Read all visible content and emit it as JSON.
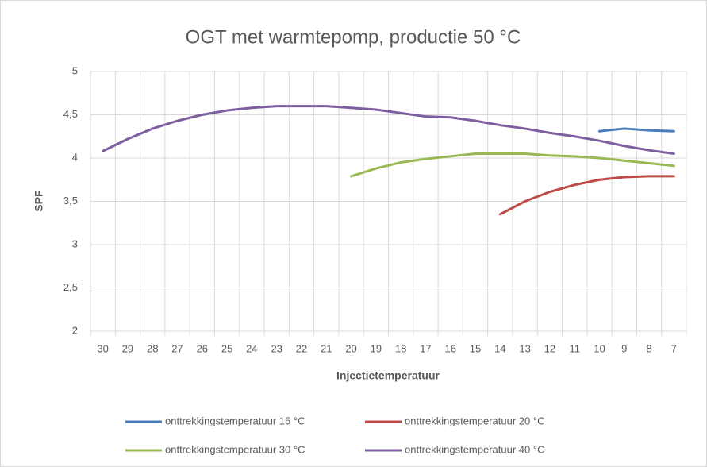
{
  "chart_data": {
    "type": "line",
    "title": "OGT met warmtepomp, productie 50 °C",
    "x_label": "Injectietemperatuur",
    "y_label": "SPF",
    "categories": [
      "30",
      "29",
      "28",
      "27",
      "26",
      "25",
      "24",
      "23",
      "22",
      "21",
      "20",
      "19",
      "18",
      "17",
      "16",
      "15",
      "14",
      "13",
      "12",
      "11",
      "10",
      "9",
      "8",
      "7"
    ],
    "ylim": [
      2,
      5
    ],
    "yticks": [
      2,
      {
        "value": 2.5,
        "label": "2,5"
      },
      3,
      {
        "value": 3.5,
        "label": "3,5"
      },
      4,
      {
        "value": 4.5,
        "label": "4,5"
      },
      5
    ],
    "grid": true,
    "legend": "bottom",
    "series": [
      {
        "name": "onttrekkingstemperatuur 15 °C",
        "color": "#4a7ebb",
        "values": [
          null,
          null,
          null,
          null,
          null,
          null,
          null,
          null,
          null,
          null,
          null,
          null,
          null,
          null,
          null,
          null,
          null,
          null,
          null,
          null,
          4.31,
          4.34,
          4.32,
          4.31
        ]
      },
      {
        "name": "onttrekkingstemperatuur 20 °C",
        "color": "#be4b48",
        "values": [
          null,
          null,
          null,
          null,
          null,
          null,
          null,
          null,
          null,
          null,
          null,
          null,
          null,
          null,
          null,
          null,
          3.35,
          3.5,
          3.61,
          3.69,
          3.75,
          3.78,
          3.79,
          3.79
        ]
      },
      {
        "name": "onttrekkingstemperatuur 30 °C",
        "color": "#98b954",
        "values": [
          null,
          null,
          null,
          null,
          null,
          null,
          null,
          null,
          null,
          null,
          3.79,
          3.88,
          3.95,
          3.99,
          4.02,
          4.05,
          4.05,
          4.05,
          4.03,
          4.02,
          4.0,
          3.97,
          3.94,
          3.91
        ]
      },
      {
        "name": "onttrekkingstemperatuur 40 °C",
        "color": "#7d5fa0",
        "values": [
          4.08,
          4.22,
          4.34,
          4.43,
          4.5,
          4.55,
          4.58,
          4.6,
          4.6,
          4.6,
          4.58,
          4.56,
          4.52,
          4.48,
          4.47,
          4.43,
          4.38,
          4.34,
          4.29,
          4.25,
          4.2,
          4.14,
          4.09,
          4.05
        ]
      }
    ]
  }
}
